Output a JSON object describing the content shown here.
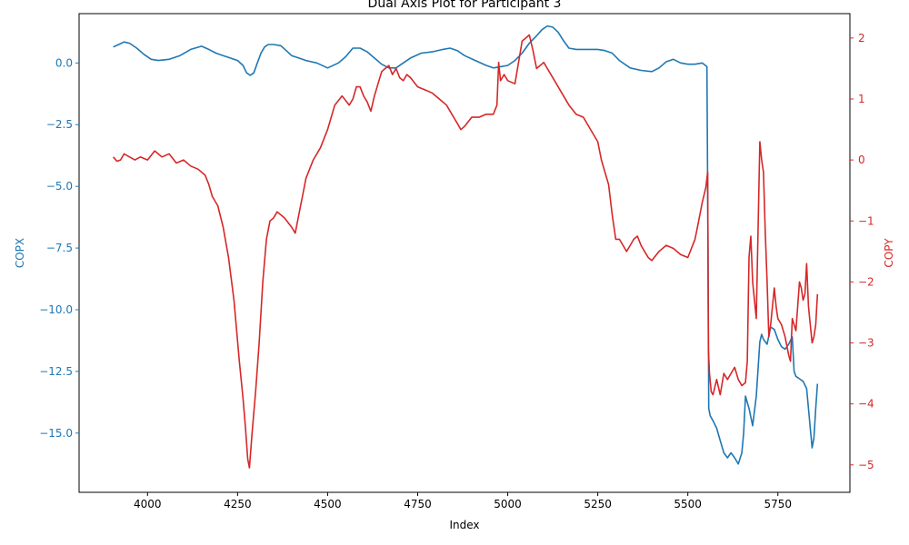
{
  "chart_data": {
    "type": "line",
    "title": "Dual Axis Plot for Participant 3",
    "xlabel": "Index",
    "ylabel_left": "COPX",
    "ylabel_right": "COPY",
    "xlim": [
      3810,
      5950
    ],
    "ylim_left": [
      -17.4,
      2.0
    ],
    "ylim_right": [
      -5.45,
      2.4
    ],
    "x_ticks": [
      4000,
      4250,
      4500,
      4750,
      5000,
      5250,
      5500,
      5750
    ],
    "y_left_ticks": [
      0.0,
      -2.5,
      -5.0,
      -7.5,
      -10.0,
      -12.5,
      -15.0
    ],
    "y_left_tick_labels": [
      "0.0",
      "−2.5",
      "−5.0",
      "−7.5",
      "−10.0",
      "−12.5",
      "−15.0"
    ],
    "y_right_ticks": [
      2,
      1,
      0,
      -1,
      -2,
      -3,
      -4,
      -5
    ],
    "y_right_tick_labels": [
      "2",
      "1",
      "0",
      "−1",
      "−2",
      "−3",
      "−4",
      "−5"
    ],
    "grid": false,
    "legend": "none",
    "colors": {
      "copx": "#1f77b4",
      "copy": "#d62728",
      "axis": "#000000"
    },
    "series": [
      {
        "axis": "left",
        "color": "#1f77b4",
        "x": [
          3905,
          3920,
          3935,
          3950,
          3970,
          3990,
          4010,
          4030,
          4060,
          4090,
          4120,
          4150,
          4170,
          4190,
          4210,
          4230,
          4250,
          4265,
          4275,
          4285,
          4295,
          4305,
          4315,
          4325,
          4335,
          4350,
          4370,
          4385,
          4400,
          4420,
          4440,
          4470,
          4500,
          4530,
          4550,
          4570,
          4590,
          4610,
          4630,
          4650,
          4670,
          4690,
          4710,
          4730,
          4760,
          4790,
          4820,
          4840,
          4860,
          4880,
          4910,
          4940,
          4960,
          4980,
          5000,
          5020,
          5040,
          5060,
          5080,
          5095,
          5110,
          5125,
          5140,
          5155,
          5170,
          5190,
          5220,
          5250,
          5270,
          5290,
          5310,
          5340,
          5370,
          5400,
          5420,
          5440,
          5460,
          5480,
          5500,
          5520,
          5540,
          5553,
          5556,
          5558,
          5562,
          5570,
          5580,
          5590,
          5600,
          5610,
          5620,
          5630,
          5640,
          5650,
          5655,
          5660,
          5670,
          5680,
          5690,
          5700,
          5705,
          5710,
          5720,
          5730,
          5740,
          5750,
          5760,
          5770,
          5780,
          5790,
          5795,
          5800,
          5810,
          5820,
          5830,
          5840,
          5845,
          5850,
          5855,
          5860
        ],
        "values": [
          0.65,
          0.75,
          0.85,
          0.8,
          0.6,
          0.35,
          0.15,
          0.1,
          0.15,
          0.3,
          0.55,
          0.68,
          0.55,
          0.4,
          0.3,
          0.2,
          0.1,
          -0.1,
          -0.4,
          -0.5,
          -0.4,
          0.0,
          0.4,
          0.65,
          0.75,
          0.75,
          0.7,
          0.5,
          0.3,
          0.2,
          0.1,
          0.0,
          -0.2,
          0.0,
          0.25,
          0.6,
          0.6,
          0.45,
          0.2,
          -0.05,
          -0.2,
          -0.2,
          0.0,
          0.2,
          0.4,
          0.45,
          0.55,
          0.6,
          0.5,
          0.3,
          0.1,
          -0.1,
          -0.2,
          -0.15,
          -0.1,
          0.1,
          0.4,
          0.8,
          1.1,
          1.35,
          1.5,
          1.45,
          1.25,
          0.9,
          0.6,
          0.55,
          0.55,
          0.55,
          0.5,
          0.4,
          0.1,
          -0.2,
          -0.3,
          -0.35,
          -0.2,
          0.05,
          0.15,
          0.0,
          -0.05,
          -0.05,
          0.0,
          -0.15,
          -7.5,
          -14.0,
          -14.3,
          -14.5,
          -14.8,
          -15.3,
          -15.8,
          -16.0,
          -15.8,
          -16.0,
          -16.25,
          -15.8,
          -15.0,
          -13.5,
          -14.0,
          -14.7,
          -13.5,
          -11.3,
          -11.0,
          -11.2,
          -11.4,
          -10.7,
          -10.8,
          -11.2,
          -11.5,
          -11.6,
          -11.4,
          -11.1,
          -12.5,
          -12.7,
          -12.8,
          -12.9,
          -13.2,
          -14.8,
          -15.6,
          -15.2,
          -14.0,
          -13.0
        ]
      },
      {
        "axis": "right",
        "color": "#d62728",
        "x": [
          3905,
          3915,
          3925,
          3935,
          3950,
          3965,
          3980,
          4000,
          4020,
          4040,
          4060,
          4080,
          4100,
          4120,
          4140,
          4160,
          4170,
          4180,
          4195,
          4210,
          4225,
          4240,
          4255,
          4265,
          4272,
          4278,
          4283,
          4290,
          4300,
          4310,
          4320,
          4330,
          4340,
          4350,
          4360,
          4370,
          4380,
          4400,
          4410,
          4420,
          4430,
          4440,
          4450,
          4460,
          4480,
          4500,
          4520,
          4540,
          4560,
          4570,
          4580,
          4590,
          4600,
          4610,
          4620,
          4630,
          4640,
          4650,
          4660,
          4670,
          4680,
          4690,
          4700,
          4710,
          4720,
          4730,
          4750,
          4770,
          4790,
          4810,
          4830,
          4850,
          4860,
          4870,
          4880,
          4900,
          4920,
          4940,
          4960,
          4970,
          4975,
          4980,
          4990,
          5000,
          5020,
          5040,
          5050,
          5060,
          5070,
          5080,
          5090,
          5100,
          5110,
          5130,
          5150,
          5170,
          5190,
          5210,
          5230,
          5250,
          5260,
          5270,
          5280,
          5290,
          5300,
          5310,
          5320,
          5330,
          5340,
          5350,
          5360,
          5370,
          5380,
          5390,
          5400,
          5420,
          5440,
          5460,
          5480,
          5500,
          5520,
          5530,
          5540,
          5550,
          5553,
          5555,
          5557,
          5560,
          5565,
          5570,
          5580,
          5590,
          5600,
          5610,
          5620,
          5630,
          5640,
          5650,
          5660,
          5665,
          5670,
          5675,
          5680,
          5685,
          5690,
          5700,
          5705,
          5710,
          5715,
          5720,
          5725,
          5730,
          5735,
          5740,
          5745,
          5750,
          5760,
          5770,
          5780,
          5785,
          5790,
          5800,
          5810,
          5815,
          5820,
          5825,
          5830,
          5835,
          5840,
          5845,
          5850,
          5855,
          5860
        ],
        "values": [
          0.05,
          -0.02,
          0.0,
          0.1,
          0.05,
          0.0,
          0.05,
          0.0,
          0.15,
          0.05,
          0.1,
          -0.05,
          0.0,
          -0.1,
          -0.15,
          -0.25,
          -0.4,
          -0.6,
          -0.75,
          -1.1,
          -1.6,
          -2.3,
          -3.3,
          -3.9,
          -4.4,
          -4.9,
          -5.05,
          -4.5,
          -3.8,
          -3.0,
          -2.0,
          -1.3,
          -1.0,
          -0.95,
          -0.85,
          -0.9,
          -0.95,
          -1.1,
          -1.2,
          -0.9,
          -0.6,
          -0.3,
          -0.15,
          0.0,
          0.2,
          0.5,
          0.9,
          1.05,
          0.9,
          1.0,
          1.2,
          1.2,
          1.05,
          0.95,
          0.8,
          1.05,
          1.25,
          1.45,
          1.5,
          1.55,
          1.4,
          1.5,
          1.35,
          1.3,
          1.4,
          1.35,
          1.2,
          1.15,
          1.1,
          1.0,
          0.9,
          0.7,
          0.6,
          0.5,
          0.55,
          0.7,
          0.7,
          0.75,
          0.75,
          0.9,
          1.6,
          1.3,
          1.4,
          1.3,
          1.25,
          1.95,
          2.0,
          2.05,
          1.8,
          1.5,
          1.55,
          1.6,
          1.5,
          1.3,
          1.1,
          0.9,
          0.75,
          0.7,
          0.5,
          0.3,
          0.0,
          -0.2,
          -0.4,
          -0.9,
          -1.3,
          -1.3,
          -1.4,
          -1.5,
          -1.4,
          -1.3,
          -1.25,
          -1.4,
          -1.5,
          -1.6,
          -1.65,
          -1.5,
          -1.4,
          -1.45,
          -1.55,
          -1.6,
          -1.3,
          -1.0,
          -0.7,
          -0.45,
          -0.3,
          -0.2,
          -3.1,
          -3.5,
          -3.8,
          -3.85,
          -3.6,
          -3.85,
          -3.5,
          -3.6,
          -3.5,
          -3.4,
          -3.6,
          -3.7,
          -3.65,
          -3.3,
          -1.6,
          -1.25,
          -2.0,
          -2.3,
          -2.6,
          0.3,
          0.0,
          -0.2,
          -1.2,
          -2.0,
          -2.9,
          -2.7,
          -2.4,
          -2.1,
          -2.4,
          -2.6,
          -2.7,
          -2.9,
          -3.2,
          -3.3,
          -2.6,
          -2.8,
          -2.0,
          -2.1,
          -2.3,
          -2.2,
          -1.7,
          -2.4,
          -2.7,
          -3.0,
          -2.9,
          -2.7,
          -2.2
        ]
      }
    ]
  }
}
